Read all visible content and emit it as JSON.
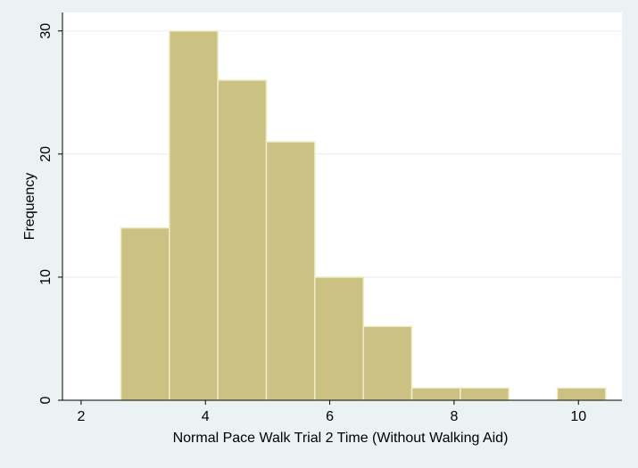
{
  "colors": {
    "background": "#eaf2f3",
    "plot_area": "#ffffff",
    "bar_fill": "#cbc183",
    "bar_stroke": "#eeedc6",
    "grid": "#e8eded",
    "axis": "#000000"
  },
  "chart_data": {
    "type": "bar",
    "histogram": true,
    "title": "",
    "xlabel": "Normal Pace Walk Trial 2 Time (Without Walking Aid)",
    "ylabel": "Frequency",
    "xlim": [
      1.7,
      10.7
    ],
    "ylim": [
      0,
      31.5
    ],
    "xticks": [
      2,
      4,
      6,
      8,
      10
    ],
    "xtick_labels": [
      "2",
      "4",
      "6",
      "8",
      "10"
    ],
    "yticks": [
      0,
      10,
      20,
      30
    ],
    "ytick_labels": [
      "0",
      "10",
      "20",
      "30"
    ],
    "grid": true,
    "bins": [
      {
        "x0": 2.64,
        "x1": 3.42,
        "count": 14
      },
      {
        "x0": 3.42,
        "x1": 4.2,
        "count": 30
      },
      {
        "x0": 4.2,
        "x1": 4.98,
        "count": 26
      },
      {
        "x0": 4.98,
        "x1": 5.76,
        "count": 21
      },
      {
        "x0": 5.76,
        "x1": 6.54,
        "count": 10
      },
      {
        "x0": 6.54,
        "x1": 7.32,
        "count": 6
      },
      {
        "x0": 7.32,
        "x1": 8.1,
        "count": 1
      },
      {
        "x0": 8.1,
        "x1": 8.88,
        "count": 1
      },
      {
        "x0": 8.88,
        "x1": 9.66,
        "count": 0
      },
      {
        "x0": 9.66,
        "x1": 10.44,
        "count": 1
      }
    ]
  }
}
